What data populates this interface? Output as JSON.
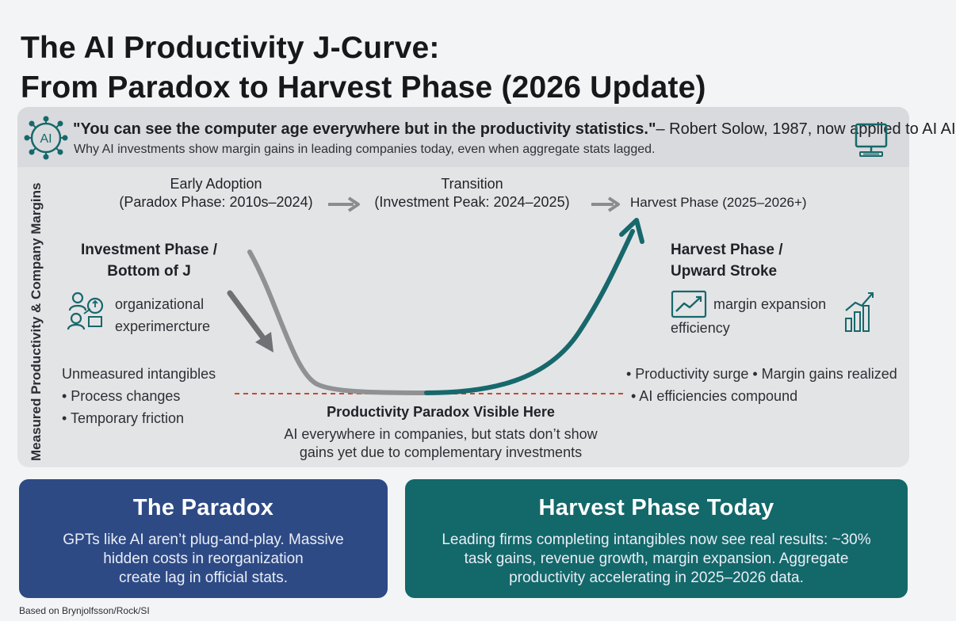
{
  "title": {
    "line1": "The AI Productivity J-Curve:",
    "line2": "From Paradox to Harvest Phase (2026 Update)"
  },
  "quote": {
    "text": "\"You can see the computer age everywhere but in the productivity statistics.\"",
    "attribution": "– Robert Solow, 1987, now applied to AI AI",
    "subtext": "Why AI investments show margin gains in leading companies today, even when aggregate stats lagged.",
    "left_icon_label": "AI"
  },
  "y_axis_label": "Measured Productivity & Company Margins",
  "phases": [
    {
      "line1": "Early Adoption",
      "line2": "(Paradox Phase: 2010s–2024)"
    },
    {
      "line1": "Transition",
      "line2": "(Investment Peak: 2024–2025)"
    },
    {
      "line1": "Harvest Phase (2025–2026+)"
    }
  ],
  "left_block": {
    "title1": "Investment Phase /",
    "title2": "Bottom of J",
    "icon_text1": "organizational",
    "icon_text2": "experimercture",
    "items": [
      "Unmeasured intangibles",
      "• Process changes",
      "• Temporary friction"
    ]
  },
  "right_block": {
    "title1": "Harvest Phase /",
    "title2": "Upward Stroke",
    "icon_text1": "margin expansion",
    "icon_text2": "efficiency",
    "items": [
      "• Productivity surge • Margin gains realized",
      "• AI efficiencies compound"
    ]
  },
  "paradox_zone": {
    "title": "Productivity Paradox Visible Here",
    "line1": "AI everywhere in companies, but stats don’t show",
    "line2": "gains yet due to complementary investments"
  },
  "cards": {
    "left": {
      "title": "The Paradox",
      "line1": "GPTs like AI aren’t plug-and-play. Massive",
      "line2": "hidden costs in reorganization",
      "line3": "create lag in official stats."
    },
    "right": {
      "title": "Harvest Phase Today",
      "line1": "Leading firms completing intangibles now see real results: ~30%",
      "line2": "task gains, revenue growth, margin expansion. Aggregate",
      "line3": "productivity accelerating in 2025–2026 data."
    }
  },
  "footnote": "Based on Brynjolfsson/Rock/SI",
  "colors": {
    "teal": "#17686b",
    "gray_curve": "#8a8c8f",
    "navy": "#2e4a85",
    "paradox_line": "#c8472f"
  },
  "icons": [
    "ai-brain-icon",
    "computer-monitor-icon",
    "people-collaboration-icon",
    "trend-chart-icon",
    "bar-chart-icon"
  ]
}
